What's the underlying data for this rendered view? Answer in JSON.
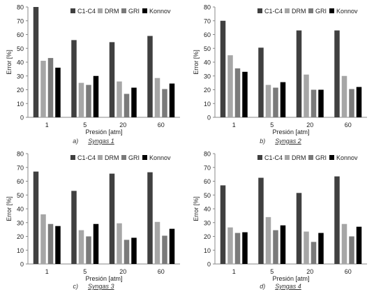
{
  "series_names": [
    "C1-C4",
    "DRM",
    "GRI",
    "Konnov"
  ],
  "series_colors": [
    "#404040",
    "#a6a6a6",
    "#7a7a7a",
    "#000000"
  ],
  "chart_data": [
    {
      "type": "bar",
      "categories": [
        "1",
        "5",
        "20",
        "60"
      ],
      "xlabel": "Presión [atm]",
      "ylabel": "Error [%]",
      "ylim": [
        0,
        80
      ],
      "yticks": [
        "0",
        "10",
        "20",
        "30",
        "40",
        "50",
        "60",
        "70",
        "80"
      ],
      "legend": "top-right",
      "grid": false,
      "series": [
        {
          "name": "C1-C4",
          "values": [
            80,
            56,
            54.5,
            59
          ]
        },
        {
          "name": "DRM",
          "values": [
            41,
            25,
            26,
            28.5
          ]
        },
        {
          "name": "GRI",
          "values": [
            43,
            23.5,
            17,
            20.5
          ]
        },
        {
          "name": "Konnov",
          "values": [
            36,
            30,
            21.5,
            24.5
          ]
        }
      ],
      "caption_tag": "a)",
      "caption_name": "Syngas 1"
    },
    {
      "type": "bar",
      "categories": [
        "1",
        "5",
        "20",
        "60"
      ],
      "xlabel": "Presión [atm]",
      "ylabel": "Error [%]",
      "ylim": [
        0,
        80
      ],
      "yticks": [
        "0",
        "10",
        "20",
        "30",
        "40",
        "50",
        "60",
        "70",
        "80"
      ],
      "legend": "top-right",
      "grid": false,
      "series": [
        {
          "name": "C1-C4",
          "values": [
            70,
            50.5,
            63,
            63
          ]
        },
        {
          "name": "DRM",
          "values": [
            45,
            23.5,
            31,
            30
          ]
        },
        {
          "name": "GRI",
          "values": [
            35.5,
            21.5,
            20,
            20.5
          ]
        },
        {
          "name": "Konnov",
          "values": [
            33,
            25.5,
            20,
            22
          ]
        }
      ],
      "caption_tag": "b)",
      "caption_name": "Syngas 2"
    },
    {
      "type": "bar",
      "categories": [
        "1",
        "5",
        "20",
        "60"
      ],
      "xlabel": "Presión [atm]",
      "ylabel": "Error [%]",
      "ylim": [
        0,
        80
      ],
      "yticks": [
        "0",
        "10",
        "20",
        "30",
        "40",
        "50",
        "60",
        "70",
        "80"
      ],
      "legend": "top-right",
      "grid": false,
      "series": [
        {
          "name": "C1-C4",
          "values": [
            67,
            53,
            65.5,
            66.5
          ]
        },
        {
          "name": "DRM",
          "values": [
            36,
            24.5,
            29.5,
            30.5
          ]
        },
        {
          "name": "GRI",
          "values": [
            29,
            20,
            17.5,
            20.5
          ]
        },
        {
          "name": "Konnov",
          "values": [
            27.5,
            29,
            19,
            25.5
          ]
        }
      ],
      "caption_tag": "c)",
      "caption_name": "Syngas 3"
    },
    {
      "type": "bar",
      "categories": [
        "1",
        "5",
        "20",
        "60"
      ],
      "xlabel": "Presión [atm]",
      "ylabel": "Error [%]",
      "ylim": [
        0,
        80
      ],
      "yticks": [
        "0",
        "10",
        "20",
        "30",
        "40",
        "50",
        "60",
        "70",
        "80"
      ],
      "legend": "top-right",
      "grid": false,
      "series": [
        {
          "name": "C1-C4",
          "values": [
            57,
            62.5,
            51.5,
            63.5
          ]
        },
        {
          "name": "DRM",
          "values": [
            26.5,
            34,
            23.5,
            29
          ]
        },
        {
          "name": "GRI",
          "values": [
            22.5,
            24.5,
            16,
            20
          ]
        },
        {
          "name": "Konnov",
          "values": [
            23,
            28,
            22.5,
            27
          ]
        }
      ],
      "caption_tag": "d)",
      "caption_name": "Syngas 4"
    }
  ]
}
